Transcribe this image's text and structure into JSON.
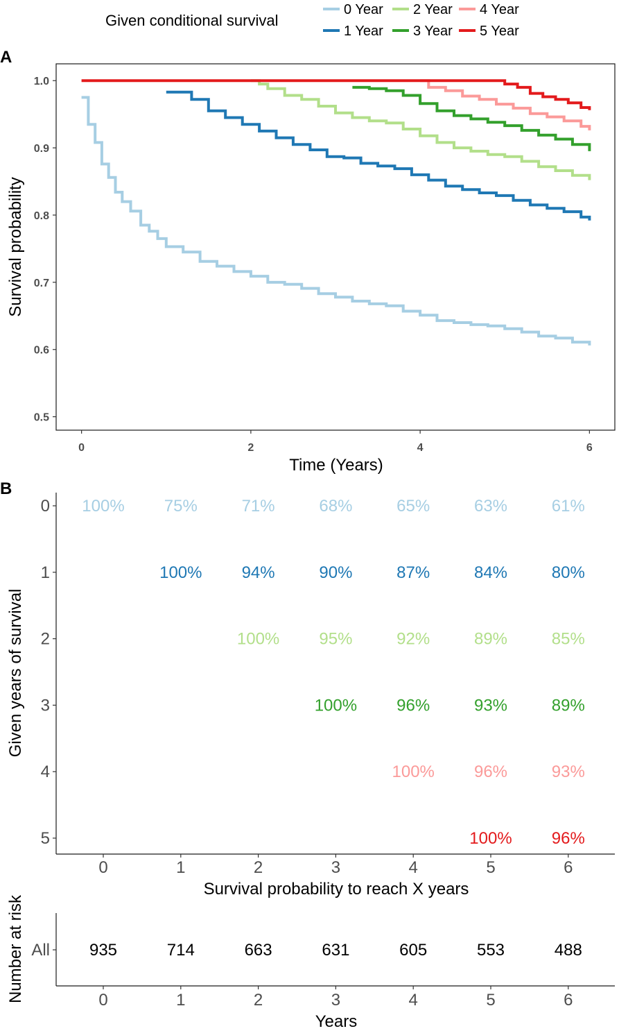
{
  "legend": {
    "title": "Given conditional survival",
    "items": [
      {
        "label": "0 Year",
        "color": "#a6cee3"
      },
      {
        "label": "2 Year",
        "color": "#b2df8a"
      },
      {
        "label": "4 Year",
        "color": "#fb9a99"
      },
      {
        "label": "1 Year",
        "color": "#1f78b4"
      },
      {
        "label": "3 Year",
        "color": "#33a02c"
      },
      {
        "label": "5 Year",
        "color": "#e31a1c"
      }
    ]
  },
  "panel_a_label": "A",
  "panel_b_label": "B",
  "chart_data": [
    {
      "type": "line",
      "step": true,
      "xlabel": "Time (Years)",
      "ylabel": "Survival probability",
      "xlim": [
        -0.3,
        6.3
      ],
      "ylim": [
        0.48,
        1.025
      ],
      "xticks": [
        "0",
        "2",
        "4",
        "6"
      ],
      "xtick_values": [
        0,
        2,
        4,
        6
      ],
      "yticks": [
        "0.5",
        "0.6",
        "0.7",
        "0.8",
        "0.9",
        "1.0"
      ],
      "ytick_values": [
        0.5,
        0.6,
        0.7,
        0.8,
        0.9,
        1.0
      ],
      "series": [
        {
          "name": "0 Year",
          "color": "#a6cee3",
          "x": [
            0,
            0.08,
            0.16,
            0.24,
            0.32,
            0.4,
            0.48,
            0.58,
            0.7,
            0.8,
            0.9,
            1.0,
            1.2,
            1.4,
            1.6,
            1.8,
            2.0,
            2.2,
            2.4,
            2.6,
            2.8,
            3.0,
            3.2,
            3.4,
            3.6,
            3.8,
            4.0,
            4.2,
            4.4,
            4.6,
            4.8,
            5.0,
            5.2,
            5.4,
            5.6,
            5.8,
            6.0
          ],
          "y": [
            0.975,
            0.935,
            0.908,
            0.876,
            0.856,
            0.834,
            0.82,
            0.806,
            0.785,
            0.776,
            0.765,
            0.753,
            0.745,
            0.731,
            0.724,
            0.716,
            0.709,
            0.7,
            0.697,
            0.691,
            0.683,
            0.678,
            0.672,
            0.668,
            0.665,
            0.657,
            0.651,
            0.643,
            0.64,
            0.637,
            0.635,
            0.631,
            0.626,
            0.62,
            0.617,
            0.611,
            0.606
          ]
        },
        {
          "name": "1 Year",
          "color": "#1f78b4",
          "x": [
            1.0,
            1.3,
            1.5,
            1.7,
            1.9,
            2.1,
            2.3,
            2.5,
            2.7,
            2.9,
            3.1,
            3.3,
            3.5,
            3.7,
            3.9,
            4.1,
            4.3,
            4.5,
            4.7,
            4.9,
            5.1,
            5.3,
            5.5,
            5.7,
            5.9,
            6.0
          ],
          "y": [
            0.983,
            0.972,
            0.955,
            0.945,
            0.935,
            0.925,
            0.915,
            0.905,
            0.897,
            0.887,
            0.885,
            0.877,
            0.873,
            0.869,
            0.86,
            0.852,
            0.843,
            0.838,
            0.833,
            0.829,
            0.822,
            0.815,
            0.81,
            0.805,
            0.797,
            0.792
          ]
        },
        {
          "name": "2 Year",
          "color": "#b2df8a",
          "x": [
            2.0,
            2.1,
            2.2,
            2.4,
            2.6,
            2.8,
            3.0,
            3.2,
            3.4,
            3.6,
            3.8,
            4.0,
            4.2,
            4.4,
            4.6,
            4.8,
            5.0,
            5.2,
            5.4,
            5.6,
            5.8,
            6.0
          ],
          "y": [
            1.0,
            0.995,
            0.988,
            0.978,
            0.972,
            0.962,
            0.952,
            0.945,
            0.94,
            0.937,
            0.928,
            0.918,
            0.908,
            0.9,
            0.895,
            0.89,
            0.887,
            0.88,
            0.872,
            0.866,
            0.859,
            0.852
          ]
        },
        {
          "name": "3 Year",
          "color": "#33a02c",
          "x": [
            3.2,
            3.4,
            3.6,
            3.8,
            4.0,
            4.2,
            4.4,
            4.6,
            4.8,
            5.0,
            5.2,
            5.4,
            5.6,
            5.8,
            6.0
          ],
          "y": [
            0.99,
            0.988,
            0.985,
            0.978,
            0.966,
            0.955,
            0.948,
            0.943,
            0.938,
            0.933,
            0.926,
            0.919,
            0.913,
            0.905,
            0.895
          ]
        },
        {
          "name": "4 Year",
          "color": "#fb9a99",
          "x": [
            4.0,
            4.1,
            4.3,
            4.5,
            4.7,
            4.9,
            5.1,
            5.3,
            5.5,
            5.7,
            5.9,
            6.0
          ],
          "y": [
            1.0,
            0.99,
            0.985,
            0.977,
            0.972,
            0.965,
            0.959,
            0.951,
            0.946,
            0.94,
            0.932,
            0.926
          ]
        },
        {
          "name": "5 Year",
          "color": "#e31a1c",
          "x": [
            0,
            5.0,
            5.15,
            5.3,
            5.45,
            5.6,
            5.75,
            5.9,
            6.0
          ],
          "y": [
            1.0,
            0.995,
            0.99,
            0.981,
            0.976,
            0.972,
            0.967,
            0.96,
            0.956
          ]
        }
      ]
    },
    {
      "type": "table",
      "xlabel": "Survival probability to reach X years",
      "ylabel": "Given years of survival",
      "columns": [
        "0",
        "1",
        "2",
        "3",
        "4",
        "5",
        "6"
      ],
      "rows": [
        {
          "label": "0",
          "color": "#a6cee3",
          "start": 0,
          "values": [
            "100%",
            "75%",
            "71%",
            "68%",
            "65%",
            "63%",
            "61%"
          ]
        },
        {
          "label": "1",
          "color": "#1f78b4",
          "start": 1,
          "values": [
            "100%",
            "94%",
            "90%",
            "87%",
            "84%",
            "80%"
          ]
        },
        {
          "label": "2",
          "color": "#b2df8a",
          "start": 2,
          "values": [
            "100%",
            "95%",
            "92%",
            "89%",
            "85%"
          ]
        },
        {
          "label": "3",
          "color": "#33a02c",
          "start": 3,
          "values": [
            "100%",
            "96%",
            "93%",
            "89%"
          ]
        },
        {
          "label": "4",
          "color": "#fb9a99",
          "start": 4,
          "values": [
            "100%",
            "96%",
            "93%"
          ]
        },
        {
          "label": "5",
          "color": "#e31a1c",
          "start": 5,
          "values": [
            "100%",
            "96%"
          ]
        }
      ]
    },
    {
      "type": "table",
      "xlabel": "Years",
      "ylabel": "Number at risk",
      "columns": [
        "0",
        "1",
        "2",
        "3",
        "4",
        "5",
        "6"
      ],
      "rows": [
        {
          "label": "All",
          "values": [
            "935",
            "714",
            "663",
            "631",
            "605",
            "553",
            "488"
          ]
        }
      ]
    }
  ]
}
